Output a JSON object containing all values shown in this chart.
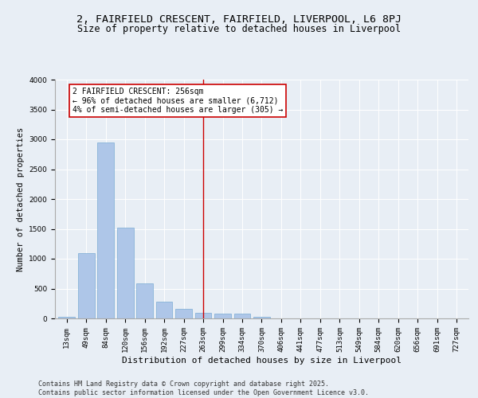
{
  "title1": "2, FAIRFIELD CRESCENT, FAIRFIELD, LIVERPOOL, L6 8PJ",
  "title2": "Size of property relative to detached houses in Liverpool",
  "xlabel": "Distribution of detached houses by size in Liverpool",
  "ylabel": "Number of detached properties",
  "categories": [
    "13sqm",
    "49sqm",
    "84sqm",
    "120sqm",
    "156sqm",
    "192sqm",
    "227sqm",
    "263sqm",
    "299sqm",
    "334sqm",
    "370sqm",
    "406sqm",
    "441sqm",
    "477sqm",
    "513sqm",
    "549sqm",
    "584sqm",
    "620sqm",
    "656sqm",
    "691sqm",
    "727sqm"
  ],
  "values": [
    30,
    1090,
    2950,
    1520,
    590,
    280,
    155,
    100,
    80,
    80,
    30,
    5,
    0,
    0,
    0,
    0,
    0,
    0,
    0,
    0,
    0
  ],
  "bar_color": "#aec6e8",
  "bar_edge_color": "#7aacd4",
  "vline_x": 7,
  "vline_color": "#cc0000",
  "annotation_text": "2 FAIRFIELD CRESCENT: 256sqm\n← 96% of detached houses are smaller (6,712)\n4% of semi-detached houses are larger (305) →",
  "annotation_box_color": "#ffffff",
  "annotation_box_edge": "#cc0000",
  "background_color": "#e8eef5",
  "plot_bg_color": "#e8eef5",
  "ylim": [
    0,
    4000
  ],
  "yticks": [
    0,
    500,
    1000,
    1500,
    2000,
    2500,
    3000,
    3500,
    4000
  ],
  "footer": "Contains HM Land Registry data © Crown copyright and database right 2025.\nContains public sector information licensed under the Open Government Licence v3.0.",
  "title1_fontsize": 9.5,
  "title2_fontsize": 8.5,
  "xlabel_fontsize": 8,
  "ylabel_fontsize": 7.5,
  "tick_fontsize": 6.5,
  "annotation_fontsize": 7,
  "footer_fontsize": 6
}
